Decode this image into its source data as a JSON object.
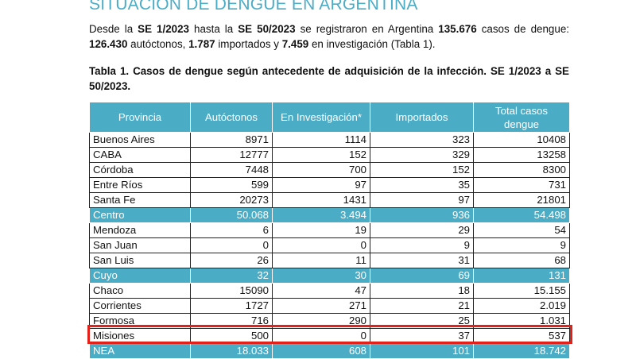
{
  "page": {
    "title": "SITUACIÓN DE DENGUE EN ARGENTINA",
    "intro": {
      "p1": "Desde la ",
      "se_start": "SE 1/2023",
      "p2": " hasta la ",
      "se_end": "SE 50/2023",
      "p3": " se registraron en Argentina ",
      "total": "135.676",
      "p4": " casos de dengue: ",
      "autoctonos": "126.430",
      "p5": " autóctonos, ",
      "importados": "1.787",
      "p6": " importados y ",
      "investigacion": "7.459",
      "p7": " en investigación (Tabla 1)."
    },
    "caption": "Tabla 1. Casos de dengue según antecedente de adquisición de la infección. SE 1/2023 a SE 50/2023."
  },
  "table": {
    "headers": [
      "Provincia",
      "Autóctonos",
      "En Investigación*",
      "Importados",
      "Total casos dengue"
    ],
    "rows": [
      [
        "Buenos Aires",
        "8971",
        "1114",
        "323",
        "10408"
      ],
      [
        "CABA",
        "12777",
        "152",
        "329",
        "13258"
      ],
      [
        "Córdoba",
        "7448",
        "700",
        "152",
        "8300"
      ],
      [
        "Entre Ríos",
        "599",
        "97",
        "35",
        "731"
      ],
      [
        "Santa Fe",
        "20273",
        "1431",
        "97",
        "21801"
      ],
      [
        "Centro",
        "50.068",
        "3.494",
        "936",
        "54.498"
      ],
      [
        "Mendoza",
        "6",
        "19",
        "29",
        "54"
      ],
      [
        "San Juan",
        "0",
        "0",
        "9",
        "9"
      ],
      [
        "San Luis",
        "26",
        "11",
        "31",
        "68"
      ],
      [
        "Cuyo",
        "32",
        "30",
        "69",
        "131"
      ],
      [
        "Chaco",
        "15090",
        "47",
        "18",
        "15.155"
      ],
      [
        "Corrientes",
        "1727",
        "271",
        "21",
        "2.019"
      ],
      [
        "Formosa",
        "716",
        "290",
        "25",
        "1.031"
      ],
      [
        "Misiones",
        "500",
        "0",
        "37",
        "537"
      ],
      [
        "NEA",
        "18.033",
        "608",
        "101",
        "18.742"
      ]
    ],
    "region_rows": [
      "Centro",
      "Cuyo",
      "NEA"
    ],
    "highlighted_row": "Misiones"
  },
  "colors": {
    "accent": "#4bacc6",
    "highlight_border": "#e3211b"
  }
}
